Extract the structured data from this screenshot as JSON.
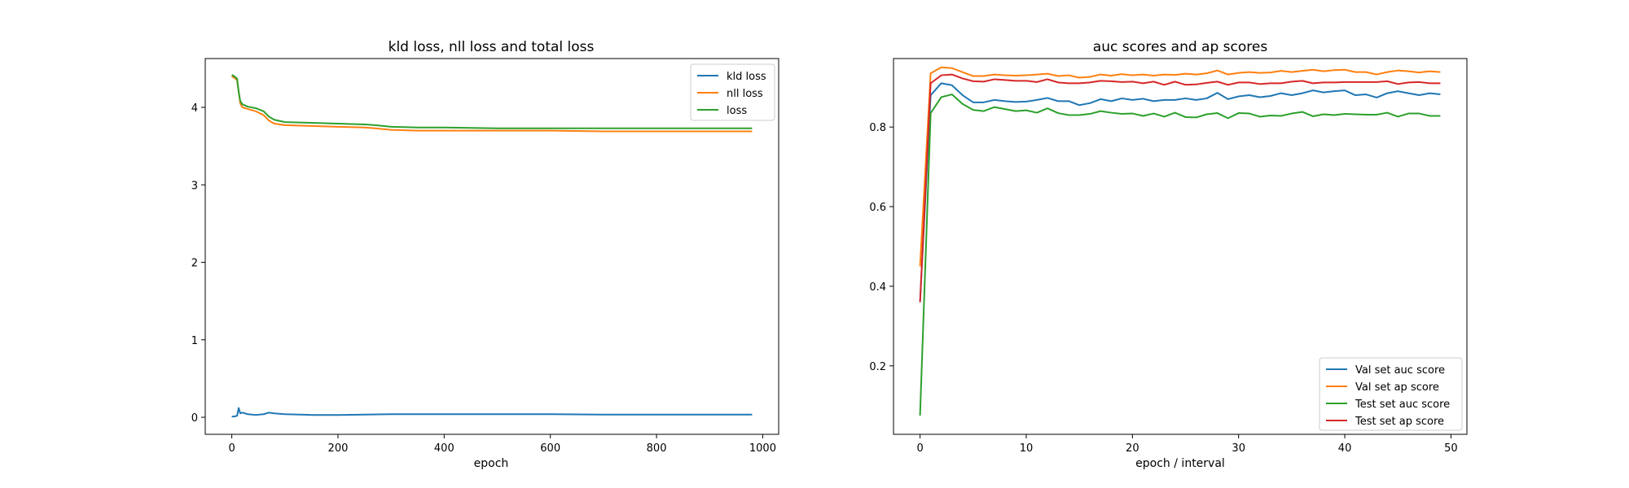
{
  "chart_data": [
    {
      "type": "line",
      "title": "kld loss, nll loss and total loss",
      "xlabel": "epoch",
      "ylabel": "",
      "xlim": [
        -50,
        1030
      ],
      "ylim": [
        -0.22,
        4.63
      ],
      "xticks": [
        0,
        200,
        400,
        600,
        800,
        1000
      ],
      "yticks": [
        0,
        1,
        2,
        3,
        4
      ],
      "grid": false,
      "legend_position": "upper right",
      "series": [
        {
          "name": "kld loss",
          "color": "#1f77b4",
          "x": [
            0,
            5,
            10,
            13,
            16,
            20,
            30,
            45,
            60,
            70,
            80,
            100,
            150,
            200,
            300,
            400,
            500,
            600,
            700,
            800,
            900,
            980
          ],
          "y": [
            0.01,
            0.01,
            0.02,
            0.12,
            0.05,
            0.06,
            0.04,
            0.03,
            0.04,
            0.06,
            0.05,
            0.04,
            0.03,
            0.03,
            0.04,
            0.04,
            0.04,
            0.04,
            0.035,
            0.035,
            0.035,
            0.035
          ]
        },
        {
          "name": "nll loss",
          "color": "#ff7f0e",
          "x": [
            0,
            5,
            10,
            13,
            16,
            20,
            30,
            45,
            60,
            70,
            80,
            100,
            150,
            200,
            250,
            270,
            300,
            350,
            400,
            500,
            600,
            700,
            800,
            900,
            980
          ],
          "y": [
            4.4,
            4.38,
            4.35,
            4.2,
            4.05,
            4.0,
            3.98,
            3.95,
            3.9,
            3.83,
            3.79,
            3.77,
            3.76,
            3.75,
            3.74,
            3.73,
            3.71,
            3.7,
            3.7,
            3.7,
            3.7,
            3.69,
            3.69,
            3.69,
            3.69
          ]
        },
        {
          "name": "loss",
          "color": "#2ca02c",
          "x": [
            0,
            5,
            10,
            13,
            16,
            20,
            30,
            45,
            60,
            70,
            80,
            100,
            150,
            200,
            250,
            270,
            300,
            350,
            400,
            500,
            600,
            700,
            800,
            900,
            980
          ],
          "y": [
            4.42,
            4.4,
            4.37,
            4.2,
            4.08,
            4.04,
            4.01,
            3.99,
            3.95,
            3.88,
            3.84,
            3.81,
            3.8,
            3.79,
            3.78,
            3.77,
            3.75,
            3.74,
            3.74,
            3.73,
            3.73,
            3.73,
            3.73,
            3.73,
            3.73
          ]
        }
      ]
    },
    {
      "type": "line",
      "title": "auc scores and ap scores",
      "xlabel": "epoch / interval",
      "ylabel": "",
      "xlim": [
        -2.5,
        51.5
      ],
      "ylim": [
        0.028,
        0.972
      ],
      "xticks": [
        0,
        10,
        20,
        30,
        40,
        50
      ],
      "yticks": [
        0.2,
        0.4,
        0.6,
        0.8
      ],
      "grid": false,
      "legend_position": "lower right",
      "x": [
        0,
        1,
        2,
        3,
        4,
        5,
        6,
        7,
        8,
        9,
        10,
        11,
        12,
        13,
        14,
        15,
        16,
        17,
        18,
        19,
        20,
        21,
        22,
        23,
        24,
        25,
        26,
        27,
        28,
        29,
        30,
        31,
        32,
        33,
        34,
        35,
        36,
        37,
        38,
        39,
        40,
        41,
        42,
        43,
        44,
        45,
        46,
        47,
        48,
        49
      ],
      "series": [
        {
          "name": "Val set auc score",
          "color": "#1f77b4",
          "values": [
            0.36,
            0.88,
            0.91,
            0.905,
            0.88,
            0.862,
            0.862,
            0.868,
            0.865,
            0.863,
            0.864,
            0.868,
            0.873,
            0.865,
            0.865,
            0.855,
            0.86,
            0.87,
            0.865,
            0.872,
            0.868,
            0.871,
            0.865,
            0.868,
            0.868,
            0.872,
            0.868,
            0.872,
            0.886,
            0.87,
            0.877,
            0.88,
            0.875,
            0.878,
            0.885,
            0.88,
            0.885,
            0.892,
            0.887,
            0.89,
            0.892,
            0.88,
            0.882,
            0.874,
            0.885,
            0.89,
            0.885,
            0.88,
            0.885,
            0.882
          ]
        },
        {
          "name": "Val set ap score",
          "color": "#ff7f0e",
          "values": [
            0.45,
            0.935,
            0.95,
            0.948,
            0.938,
            0.928,
            0.928,
            0.932,
            0.93,
            0.929,
            0.93,
            0.932,
            0.934,
            0.928,
            0.93,
            0.924,
            0.926,
            0.932,
            0.929,
            0.933,
            0.93,
            0.932,
            0.929,
            0.932,
            0.931,
            0.934,
            0.932,
            0.935,
            0.942,
            0.932,
            0.936,
            0.938,
            0.936,
            0.937,
            0.941,
            0.938,
            0.941,
            0.944,
            0.94,
            0.943,
            0.944,
            0.938,
            0.938,
            0.932,
            0.938,
            0.942,
            0.94,
            0.937,
            0.94,
            0.938
          ]
        },
        {
          "name": "Test set auc score",
          "color": "#2ca02c",
          "values": [
            0.075,
            0.835,
            0.875,
            0.882,
            0.858,
            0.843,
            0.84,
            0.85,
            0.845,
            0.84,
            0.842,
            0.836,
            0.847,
            0.835,
            0.83,
            0.83,
            0.833,
            0.84,
            0.836,
            0.833,
            0.834,
            0.828,
            0.834,
            0.826,
            0.836,
            0.825,
            0.824,
            0.832,
            0.835,
            0.822,
            0.835,
            0.834,
            0.826,
            0.829,
            0.828,
            0.834,
            0.838,
            0.827,
            0.832,
            0.83,
            0.833,
            0.832,
            0.831,
            0.831,
            0.836,
            0.826,
            0.834,
            0.834,
            0.828,
            0.828
          ]
        },
        {
          "name": "Test set ap score",
          "color": "#d62728",
          "values": [
            0.36,
            0.91,
            0.93,
            0.932,
            0.922,
            0.915,
            0.914,
            0.92,
            0.918,
            0.916,
            0.916,
            0.913,
            0.92,
            0.912,
            0.91,
            0.91,
            0.912,
            0.916,
            0.915,
            0.913,
            0.914,
            0.91,
            0.914,
            0.906,
            0.914,
            0.906,
            0.907,
            0.911,
            0.914,
            0.906,
            0.912,
            0.912,
            0.908,
            0.91,
            0.91,
            0.914,
            0.916,
            0.91,
            0.912,
            0.912,
            0.913,
            0.913,
            0.913,
            0.913,
            0.915,
            0.908,
            0.912,
            0.913,
            0.91,
            0.91
          ]
        }
      ]
    }
  ]
}
